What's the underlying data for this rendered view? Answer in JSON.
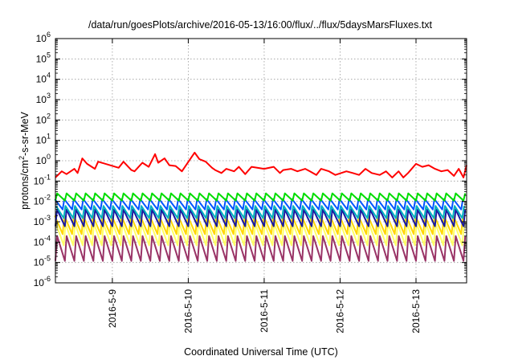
{
  "chart_data": {
    "type": "line",
    "title": "/data/run/goesPlots/archive/2016-05-13/16:00/flux/../flux/5daysMarsFluxes.txt",
    "xlabel": "Coordinated Universal Time (UTC)",
    "ylabel_parts": {
      "pre": "protons/cm",
      "sup": "2",
      "post": "-s-sr-MeV"
    },
    "xscale": "time",
    "yscale": "log",
    "xlim": [
      "2016-05-08T06:00",
      "2016-05-13T16:00"
    ],
    "ylim": [
      1e-06,
      1000000.0
    ],
    "grid": true,
    "legend": "none",
    "x_ticks": [
      {
        "x": "2016-05-09T00:00",
        "label": "2016-5-9"
      },
      {
        "x": "2016-05-10T00:00",
        "label": "2016-5-10"
      },
      {
        "x": "2016-05-11T00:00",
        "label": "2016-5-11"
      },
      {
        "x": "2016-05-12T00:00",
        "label": "2016-5-12"
      },
      {
        "x": "2016-05-13T00:00",
        "label": "2016-5-13"
      }
    ],
    "y_ticks": [
      {
        "value": 1e-06,
        "base": "10",
        "exp": "-6"
      },
      {
        "value": 1e-05,
        "base": "10",
        "exp": "-5"
      },
      {
        "value": 0.0001,
        "base": "10",
        "exp": "-4"
      },
      {
        "value": 0.001,
        "base": "10",
        "exp": "-3"
      },
      {
        "value": 0.01,
        "base": "10",
        "exp": "-2"
      },
      {
        "value": 0.1,
        "base": "10",
        "exp": "-1"
      },
      {
        "value": 1.0,
        "base": "10",
        "exp": "0"
      },
      {
        "value": 10.0,
        "base": "10",
        "exp": "1"
      },
      {
        "value": 100.0,
        "base": "10",
        "exp": "2"
      },
      {
        "value": 1000.0,
        "base": "10",
        "exp": "3"
      },
      {
        "value": 10000.0,
        "base": "10",
        "exp": "4"
      },
      {
        "value": 100000.0,
        "base": "10",
        "exp": "5"
      },
      {
        "value": 1000000.0,
        "base": "10",
        "exp": "6"
      }
    ],
    "series": [
      {
        "color": "#ff0000",
        "x": [
          "2016-05-08T06:00",
          "2016-05-08T08:00",
          "2016-05-08T09:30",
          "2016-05-08T12:00",
          "2016-05-08T13:00",
          "2016-05-08T14:30",
          "2016-05-08T16:00",
          "2016-05-08T18:30",
          "2016-05-08T19:30",
          "2016-05-09T02:00",
          "2016-05-09T03:30",
          "2016-05-09T06:00",
          "2016-05-09T07:00",
          "2016-05-09T09:30",
          "2016-05-09T11:30",
          "2016-05-09T13:30",
          "2016-05-09T14:30",
          "2016-05-09T16:30",
          "2016-05-09T18:00",
          "2016-05-09T20:00",
          "2016-05-09T22:00",
          "2016-05-10T02:00",
          "2016-05-10T03:30",
          "2016-05-10T05:30",
          "2016-05-10T07:30",
          "2016-05-10T08:30",
          "2016-05-10T10:30",
          "2016-05-10T12:00",
          "2016-05-10T14:30",
          "2016-05-10T16:00",
          "2016-05-10T18:00",
          "2016-05-10T20:00",
          "2016-05-11T00:00",
          "2016-05-11T03:00",
          "2016-05-11T05:00",
          "2016-05-11T06:00",
          "2016-05-11T08:30",
          "2016-05-11T10:30",
          "2016-05-11T13:00",
          "2016-05-11T14:30",
          "2016-05-11T16:30",
          "2016-05-11T18:00",
          "2016-05-11T20:30",
          "2016-05-11T22:30",
          "2016-05-12T02:00",
          "2016-05-12T04:00",
          "2016-05-12T06:00",
          "2016-05-12T08:00",
          "2016-05-12T10:00",
          "2016-05-12T12:30",
          "2016-05-12T14:30",
          "2016-05-12T16:30",
          "2016-05-12T18:30",
          "2016-05-12T20:00",
          "2016-05-12T21:30",
          "2016-05-13T00:00",
          "2016-05-13T02:00",
          "2016-05-13T04:00",
          "2016-05-13T06:00",
          "2016-05-13T08:00",
          "2016-05-13T10:00",
          "2016-05-13T12:00",
          "2016-05-13T13:30",
          "2016-05-13T15:00",
          "2016-05-13T16:00"
        ],
        "y": [
          0.15,
          0.3,
          0.22,
          0.4,
          0.25,
          1.3,
          0.7,
          0.4,
          0.9,
          0.45,
          0.9,
          0.35,
          0.3,
          0.8,
          0.5,
          2.1,
          0.8,
          1.3,
          0.6,
          0.55,
          0.3,
          2.5,
          1.2,
          0.9,
          0.45,
          0.35,
          0.25,
          0.4,
          0.3,
          0.5,
          0.22,
          0.5,
          0.4,
          0.5,
          0.25,
          0.35,
          0.4,
          0.3,
          0.4,
          0.3,
          0.2,
          0.4,
          0.3,
          0.2,
          0.3,
          0.25,
          0.2,
          0.4,
          0.25,
          0.2,
          0.3,
          0.15,
          0.3,
          0.15,
          0.25,
          0.7,
          0.5,
          0.6,
          0.4,
          0.3,
          0.35,
          0.18,
          0.4,
          0.15,
          0.6
        ]
      },
      {
        "color": "#00dd00",
        "shape": "sawtooth",
        "period_hours": 3,
        "peak": 0.025,
        "trough": 0.011
      },
      {
        "color": "#0055ff",
        "shape": "sawtooth",
        "period_hours": 3,
        "peak": 0.013,
        "trough": 0.004
      },
      {
        "color": "#00b0c0",
        "shape": "sawtooth",
        "period_hours": 3,
        "peak": 0.006,
        "trough": 0.0015
      },
      {
        "color": "#1a1aa0",
        "shape": "sawtooth",
        "period_hours": 3,
        "peak": 0.004,
        "trough": 0.0006
      },
      {
        "color": "#ffd700",
        "shape": "sawtooth",
        "period_hours": 3,
        "peak": 0.002,
        "trough": 0.00025
      },
      {
        "color": "#ffff66",
        "shape": "sawtooth",
        "period_hours": 3,
        "peak": 0.0008,
        "trough": 7e-05
      },
      {
        "color": "#993366",
        "shape": "sawtooth",
        "period_hours": 3,
        "peak": 0.0002,
        "trough": 1.2e-05
      }
    ]
  }
}
